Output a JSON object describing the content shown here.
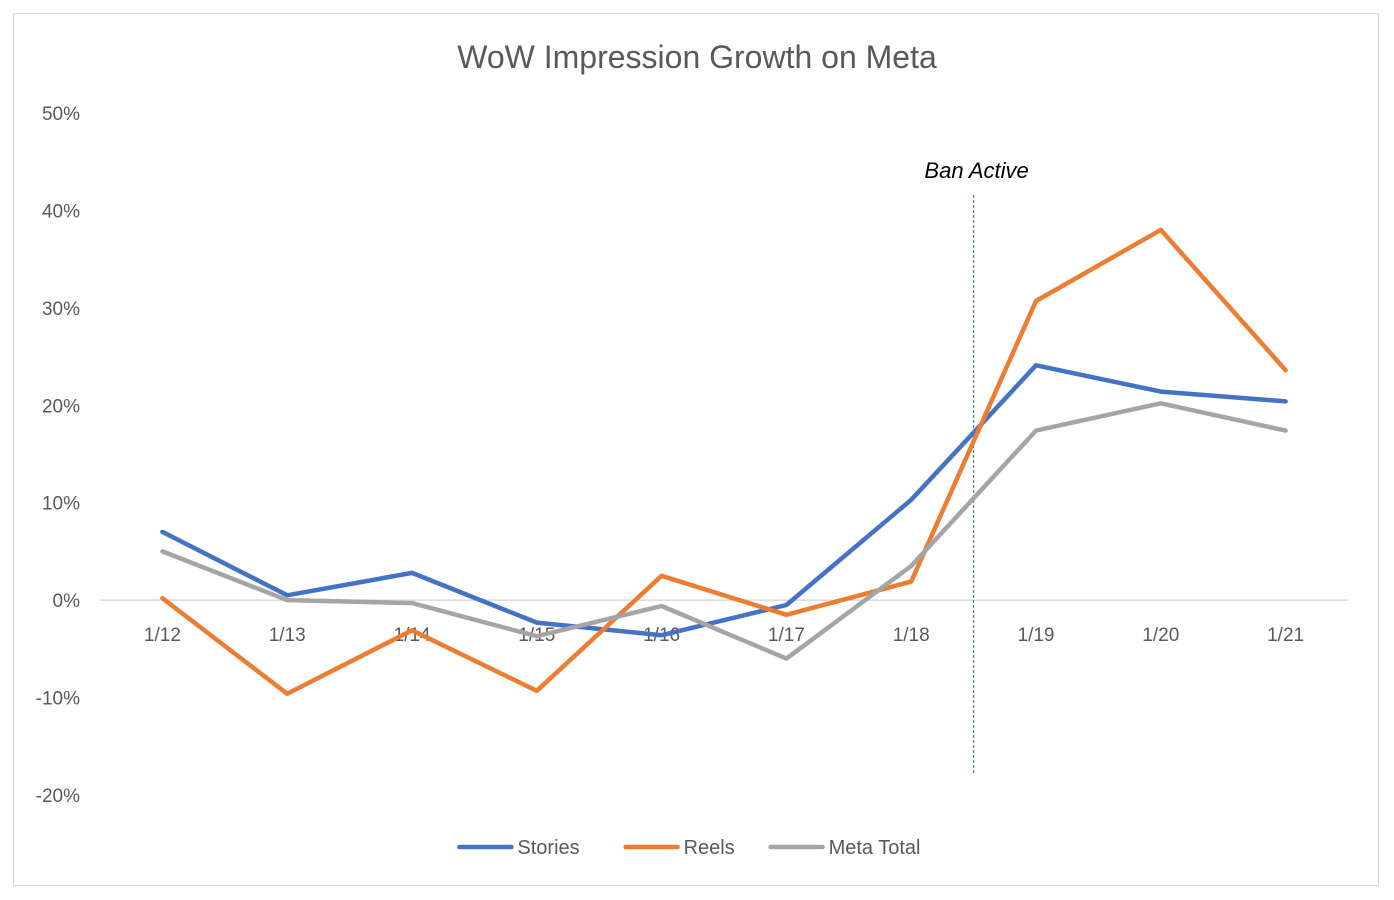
{
  "chart_data": {
    "type": "line",
    "title": "WoW Impression Growth on Meta",
    "xlabel": "",
    "ylabel": "",
    "categories": [
      "1/12",
      "1/13",
      "1/14",
      "1/15",
      "1/16",
      "1/17",
      "1/18",
      "1/19",
      "1/20",
      "1/21"
    ],
    "ylim": [
      -0.2,
      0.5
    ],
    "yticks": [
      0.5,
      0.4,
      0.3,
      0.2,
      0.1,
      0.0,
      -0.1,
      -0.2
    ],
    "ytick_labels": [
      "50%",
      "40%",
      "30%",
      "20%",
      "10%",
      "0%",
      "-10%",
      "-20%"
    ],
    "grid": false,
    "legend_position": "bottom",
    "series": [
      {
        "name": "Stories",
        "color": "#4472c4",
        "values": [
          0.07,
          0.005,
          0.028,
          -0.023,
          -0.036,
          -0.005,
          0.103,
          0.241,
          0.214,
          0.204
        ]
      },
      {
        "name": "Reels",
        "color": "#ed7d31",
        "values": [
          0.002,
          -0.096,
          -0.031,
          -0.093,
          0.025,
          -0.015,
          0.019,
          0.307,
          0.38,
          0.236
        ]
      },
      {
        "name": "Meta Total",
        "color": "#a5a5a5",
        "values": [
          0.05,
          0.0,
          -0.003,
          -0.037,
          -0.006,
          -0.06,
          0.035,
          0.174,
          0.202,
          0.174
        ]
      }
    ],
    "annotations": [
      {
        "text": "Ban Active",
        "x_between": [
          "1/18",
          "1/19"
        ],
        "style": "dashed vertical line",
        "color": "#2e6da4"
      }
    ]
  }
}
